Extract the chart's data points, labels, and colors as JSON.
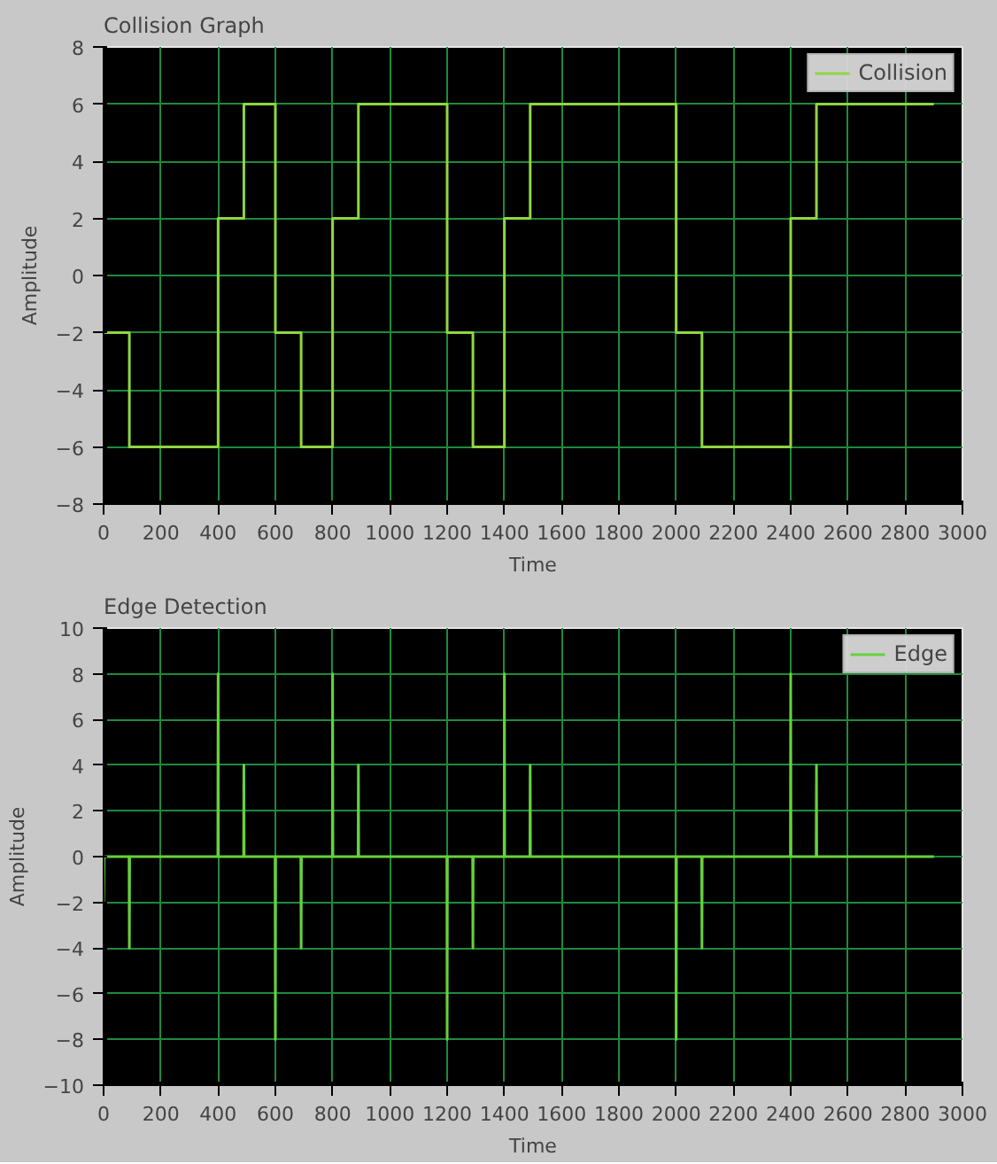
{
  "chart_data": [
    {
      "type": "line",
      "title": "Collision Graph",
      "xlabel": "Time",
      "ylabel": "Amplitude",
      "xlim": [
        0,
        3000
      ],
      "ylim": [
        -8,
        8
      ],
      "xticks": [
        0,
        200,
        400,
        600,
        800,
        1000,
        1200,
        1400,
        1600,
        1800,
        2000,
        2200,
        2400,
        2600,
        2800,
        3000
      ],
      "yticks": [
        -8,
        -6,
        -4,
        -2,
        0,
        2,
        4,
        6,
        8
      ],
      "grid": true,
      "legend": "top right",
      "series": [
        {
          "name": "Collision",
          "color": "#8fd640",
          "x": [
            0,
            90,
            90,
            400,
            400,
            490,
            490,
            600,
            600,
            690,
            690,
            800,
            800,
            890,
            890,
            1200,
            1200,
            1290,
            1290,
            1400,
            1400,
            1490,
            1490,
            2000,
            2000,
            2090,
            2090,
            2400,
            2400,
            2490,
            2490,
            2900
          ],
          "values": [
            -2,
            -2,
            -6,
            -6,
            2,
            2,
            6,
            6,
            -2,
            -2,
            -6,
            -6,
            2,
            2,
            6,
            6,
            -2,
            -2,
            -6,
            -6,
            2,
            2,
            6,
            6,
            -2,
            -2,
            -6,
            -6,
            2,
            2,
            6,
            6
          ]
        }
      ]
    },
    {
      "type": "line",
      "title": "Edge Detection",
      "xlabel": "Time",
      "ylabel": "Amplitude",
      "xlim": [
        0,
        3000
      ],
      "ylim": [
        -10,
        10
      ],
      "xticks": [
        0,
        200,
        400,
        600,
        800,
        1000,
        1200,
        1400,
        1600,
        1800,
        2000,
        2200,
        2400,
        2600,
        2800,
        3000
      ],
      "yticks": [
        -10,
        -8,
        -6,
        -4,
        -2,
        0,
        2,
        4,
        6,
        8,
        10
      ],
      "grid": true,
      "legend": "top right",
      "series": [
        {
          "name": "Edge",
          "color": "#66d13c",
          "x": [
            0,
            2,
            89,
            90,
            91,
            399,
            400,
            401,
            489,
            490,
            491,
            599,
            600,
            601,
            689,
            690,
            691,
            799,
            800,
            801,
            889,
            890,
            891,
            1199,
            1200,
            1201,
            1289,
            1290,
            1291,
            1399,
            1400,
            1401,
            1489,
            1490,
            1491,
            1999,
            2000,
            2001,
            2089,
            2090,
            2091,
            2399,
            2400,
            2401,
            2489,
            2490,
            2491,
            2900
          ],
          "values": [
            -2,
            0,
            0,
            -4,
            0,
            0,
            8,
            0,
            0,
            4,
            0,
            0,
            -8,
            0,
            0,
            -4,
            0,
            0,
            8,
            0,
            0,
            4,
            0,
            0,
            -8,
            0,
            0,
            -4,
            0,
            0,
            8,
            0,
            0,
            4,
            0,
            0,
            -8,
            0,
            0,
            -4,
            0,
            0,
            8,
            0,
            0,
            4,
            0,
            0
          ]
        }
      ]
    }
  ]
}
